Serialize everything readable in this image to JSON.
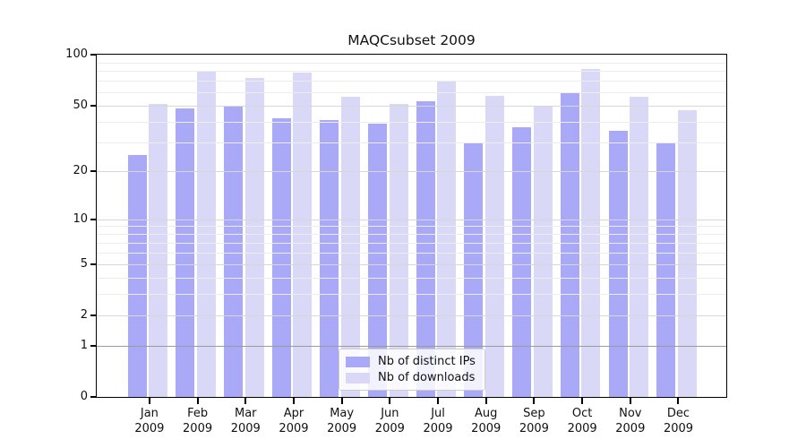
{
  "chart_data": {
    "type": "bar",
    "title": "MAQCsubset 2009",
    "categories": [
      "Jan 2009",
      "Feb 2009",
      "Mar 2009",
      "Apr 2009",
      "May 2009",
      "Jun 2009",
      "Jul 2009",
      "Aug 2009",
      "Sep 2009",
      "Oct 2009",
      "Nov 2009",
      "Dec 2009"
    ],
    "series": [
      {
        "name": "Nb of distinct IPs",
        "color": "#a9a9f7",
        "values": [
          25,
          48,
          50,
          42,
          41,
          39,
          53,
          30,
          37,
          60,
          35,
          30
        ]
      },
      {
        "name": "Nb of downloads",
        "color": "#d9d9f7",
        "values": [
          51,
          79,
          73,
          78,
          56,
          51,
          70,
          57,
          49,
          82,
          56,
          47
        ]
      }
    ],
    "yscale": "log10(1+v)",
    "ylim": [
      0,
      100
    ],
    "yticks": [
      0,
      1,
      2,
      5,
      10,
      20,
      50,
      100
    ],
    "y_minor_gridlines": [
      3,
      4,
      6,
      7,
      8,
      9,
      30,
      40,
      60,
      70,
      80,
      90
    ],
    "grid": true,
    "legend_position": "bottom-center"
  },
  "colors": {
    "background": "#ffffff",
    "axis": "#000000",
    "grid_major": "#d7d7d7",
    "grid_minor": "#ededed",
    "grid_baseline": "#9a9a9a",
    "legend_border": "#cccccc"
  }
}
